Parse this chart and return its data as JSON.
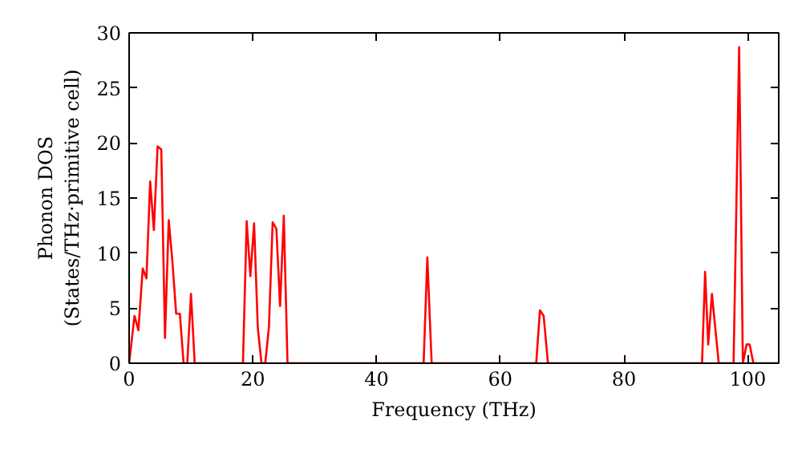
{
  "chart_data": {
    "type": "line",
    "xlabel": "Frequency (THz)",
    "ylabel": "Phonon DOS\n(States/THz·primitive cell)",
    "x": [
      0,
      0.87,
      1.5,
      2.2,
      2.8,
      3.4,
      4.0,
      4.6,
      5.2,
      5.8,
      6.4,
      7.0,
      7.6,
      8.2,
      8.8,
      9.4,
      10.0,
      10.6,
      18.4,
      19.0,
      19.6,
      20.2,
      20.8,
      21.4,
      22.0,
      22.6,
      23.2,
      23.8,
      24.4,
      25.0,
      25.6,
      47.6,
      48.2,
      48.9,
      65.8,
      66.4,
      67.0,
      67.7,
      92.6,
      93.1,
      93.6,
      94.2,
      95.3,
      97.7,
      98.6,
      99.2,
      99.8,
      100.3,
      100.9,
      105
    ],
    "series": [
      {
        "color": "#ff0000",
        "values": [
          0,
          4.3,
          3.0,
          8.6,
          7.7,
          16.5,
          12.1,
          19.7,
          19.4,
          2.3,
          13.0,
          9.2,
          4.5,
          4.5,
          0,
          0,
          6.3,
          0,
          0,
          12.9,
          7.9,
          12.7,
          3.2,
          0,
          0,
          3.3,
          12.8,
          12.2,
          5.2,
          13.4,
          0,
          0,
          9.6,
          0,
          0,
          4.8,
          4.3,
          0,
          0,
          8.3,
          1.7,
          6.3,
          0,
          0,
          28.7,
          0,
          1.7,
          1.7,
          0,
          0
        ]
      }
    ],
    "xlim": [
      0,
      105
    ],
    "ylim": [
      0,
      30
    ],
    "xticks": [
      0,
      20,
      40,
      60,
      80,
      100
    ],
    "yticks": [
      0,
      5,
      10,
      15,
      20,
      25,
      30
    ],
    "grid": false,
    "marker": "none",
    "line_style": "solid"
  }
}
